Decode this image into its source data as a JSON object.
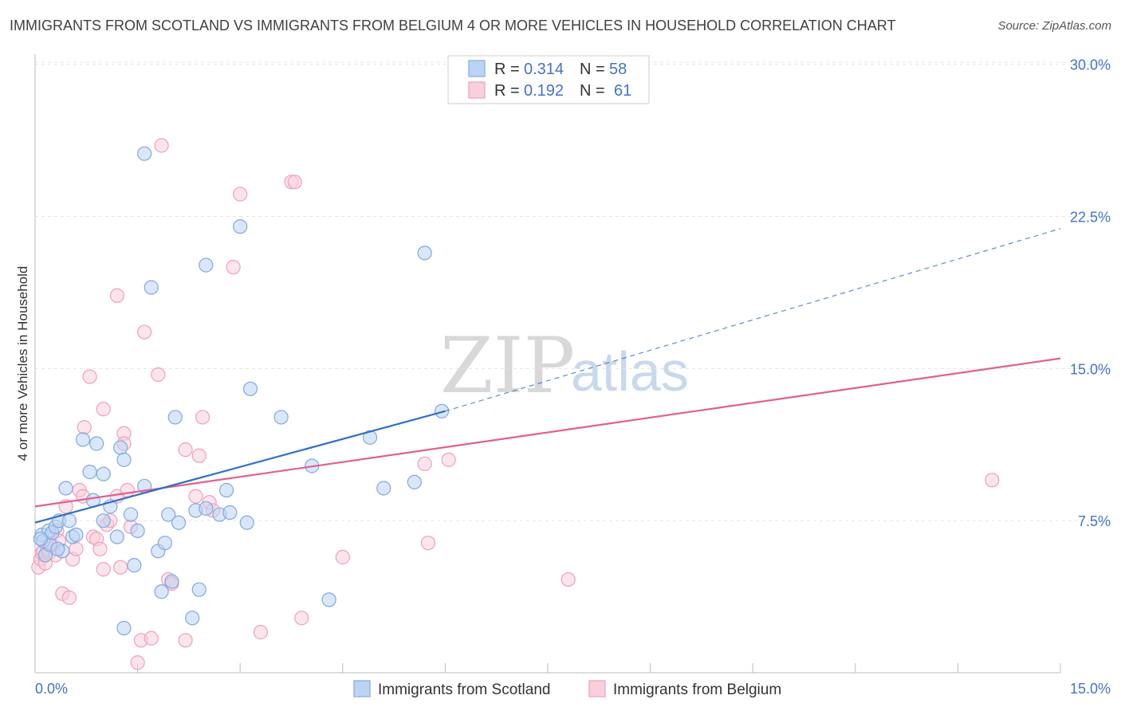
{
  "header": {
    "title": "IMMIGRANTS FROM SCOTLAND VS IMMIGRANTS FROM BELGIUM 4 OR MORE VEHICLES IN HOUSEHOLD CORRELATION CHART",
    "source": "Source: ZipAtlas.com"
  },
  "watermark": {
    "zip": "ZIP",
    "atlas": "atlas"
  },
  "legend": {
    "r_label": "R =",
    "n_label": "N =",
    "scotland": {
      "r": "0.314",
      "n": "58"
    },
    "belgium": {
      "r": "0.192",
      "n": "61"
    }
  },
  "chart_data": {
    "type": "scatter",
    "title": "IMMIGRANTS FROM SCOTLAND VS IMMIGRANTS FROM BELGIUM 4 OR MORE VEHICLES IN HOUSEHOLD CORRELATION CHART",
    "xlabel": "",
    "ylabel": "4 or more Vehicles in Household",
    "xlim": [
      0,
      15
    ],
    "ylim": [
      0,
      30.5
    ],
    "x_ticks": [
      "0.0%",
      "15.0%"
    ],
    "y_ticks": [
      "7.5%",
      "15.0%",
      "22.5%",
      "30.0%"
    ],
    "y_tick_values": [
      7.5,
      15.0,
      22.5,
      30.0
    ],
    "grid": true,
    "legend_position": "top-center",
    "series": [
      {
        "name": "Immigrants from Scotland",
        "color": "#7fa9e0",
        "fill": "#bcd4f3",
        "trend_color": "#2f6fc8",
        "r": 0.314,
        "n": 58,
        "trend": {
          "x": [
            0,
            6.0
          ],
          "y": [
            7.4,
            12.9
          ]
        },
        "trend_extension": {
          "x": [
            6.0,
            15.0
          ],
          "y": [
            12.9,
            21.9
          ]
        },
        "points": [
          [
            0.1,
            6.8
          ],
          [
            0.12,
            6.5
          ],
          [
            0.15,
            5.8
          ],
          [
            0.2,
            7.0
          ],
          [
            0.22,
            6.3
          ],
          [
            0.25,
            6.9
          ],
          [
            0.3,
            7.2
          ],
          [
            0.35,
            7.5
          ],
          [
            0.4,
            6.0
          ],
          [
            0.45,
            9.1
          ],
          [
            0.5,
            7.5
          ],
          [
            0.55,
            6.7
          ],
          [
            0.7,
            11.5
          ],
          [
            0.8,
            9.9
          ],
          [
            0.85,
            8.5
          ],
          [
            0.9,
            11.3
          ],
          [
            1.0,
            9.8
          ],
          [
            1.0,
            7.5
          ],
          [
            1.1,
            8.2
          ],
          [
            1.2,
            6.7
          ],
          [
            1.25,
            11.1
          ],
          [
            1.3,
            10.5
          ],
          [
            1.3,
            2.2
          ],
          [
            1.4,
            7.8
          ],
          [
            1.45,
            5.3
          ],
          [
            1.5,
            7.0
          ],
          [
            1.6,
            25.6
          ],
          [
            1.6,
            9.2
          ],
          [
            1.7,
            19.0
          ],
          [
            1.8,
            6.0
          ],
          [
            1.85,
            4.0
          ],
          [
            1.9,
            6.4
          ],
          [
            1.95,
            7.8
          ],
          [
            2.0,
            4.5
          ],
          [
            2.05,
            12.6
          ],
          [
            2.1,
            7.4
          ],
          [
            2.3,
            2.7
          ],
          [
            2.35,
            8.0
          ],
          [
            2.4,
            4.1
          ],
          [
            2.5,
            8.1
          ],
          [
            2.5,
            20.1
          ],
          [
            2.7,
            7.8
          ],
          [
            2.8,
            9.0
          ],
          [
            2.85,
            7.9
          ],
          [
            3.0,
            22.0
          ],
          [
            3.1,
            7.4
          ],
          [
            3.15,
            14.0
          ],
          [
            3.6,
            12.6
          ],
          [
            4.05,
            10.2
          ],
          [
            4.3,
            3.6
          ],
          [
            4.9,
            11.6
          ],
          [
            5.1,
            9.1
          ],
          [
            5.55,
            9.4
          ],
          [
            5.7,
            20.7
          ],
          [
            5.95,
            12.9
          ],
          [
            0.08,
            6.6
          ],
          [
            0.6,
            6.8
          ],
          [
            0.33,
            6.1
          ]
        ]
      },
      {
        "name": "Immigrants from Belgium",
        "color": "#ef9fb8",
        "fill": "#f8cfdc",
        "trend_color": "#e0608e",
        "r": 0.192,
        "n": 61,
        "trend": {
          "x": [
            0,
            15.0
          ],
          "y": [
            8.2,
            15.5
          ]
        },
        "points": [
          [
            0.05,
            5.2
          ],
          [
            0.08,
            5.6
          ],
          [
            0.1,
            5.9
          ],
          [
            0.12,
            6.0
          ],
          [
            0.15,
            5.4
          ],
          [
            0.18,
            6.1
          ],
          [
            0.2,
            5.9
          ],
          [
            0.25,
            6.3
          ],
          [
            0.3,
            5.8
          ],
          [
            0.32,
            7.0
          ],
          [
            0.35,
            6.5
          ],
          [
            0.4,
            3.9
          ],
          [
            0.45,
            8.2
          ],
          [
            0.5,
            3.7
          ],
          [
            0.55,
            5.6
          ],
          [
            0.6,
            6.1
          ],
          [
            0.65,
            9.0
          ],
          [
            0.7,
            8.7
          ],
          [
            0.72,
            12.1
          ],
          [
            0.8,
            14.6
          ],
          [
            0.85,
            6.7
          ],
          [
            0.9,
            6.6
          ],
          [
            0.95,
            6.1
          ],
          [
            1.0,
            5.1
          ],
          [
            1.0,
            13.0
          ],
          [
            1.05,
            7.3
          ],
          [
            1.1,
            7.5
          ],
          [
            1.2,
            8.7
          ],
          [
            1.2,
            18.6
          ],
          [
            1.25,
            5.2
          ],
          [
            1.3,
            11.8
          ],
          [
            1.3,
            11.3
          ],
          [
            1.35,
            9.0
          ],
          [
            1.4,
            7.2
          ],
          [
            1.5,
            0.5
          ],
          [
            1.55,
            1.6
          ],
          [
            1.6,
            16.8
          ],
          [
            1.7,
            1.7
          ],
          [
            1.8,
            14.7
          ],
          [
            1.85,
            26.0
          ],
          [
            1.95,
            4.6
          ],
          [
            2.0,
            4.4
          ],
          [
            2.2,
            11.0
          ],
          [
            2.2,
            1.6
          ],
          [
            2.35,
            8.7
          ],
          [
            2.4,
            10.7
          ],
          [
            2.45,
            12.6
          ],
          [
            2.55,
            8.4
          ],
          [
            2.6,
            8.0
          ],
          [
            2.9,
            20.0
          ],
          [
            3.0,
            23.6
          ],
          [
            3.3,
            2.0
          ],
          [
            3.75,
            24.2
          ],
          [
            3.8,
            24.2
          ],
          [
            3.9,
            2.7
          ],
          [
            4.5,
            5.7
          ],
          [
            5.7,
            10.3
          ],
          [
            5.75,
            6.4
          ],
          [
            6.05,
            10.5
          ],
          [
            7.8,
            4.6
          ],
          [
            14.0,
            9.5
          ]
        ]
      }
    ]
  },
  "bottom_legend": {
    "scotland": "Immigrants from Scotland",
    "belgium": "Immigrants from Belgium"
  }
}
